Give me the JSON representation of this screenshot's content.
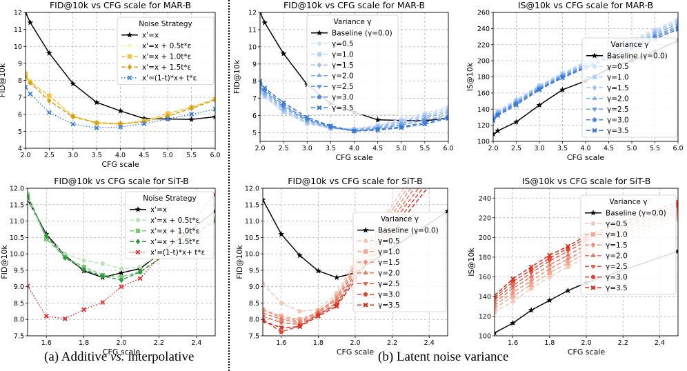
{
  "captions": {
    "a_prefix": "(a) Additive ",
    "a_vs": "vs.",
    "a_suffix": " interpolative",
    "b": "(b) Latent noise variance"
  },
  "chart_data": [
    {
      "id": "fid_mar_strategy",
      "type": "line",
      "title": "FID@10k vs CFG scale for MAR-B",
      "xlabel": "CFG scale",
      "ylabel": "FID@10k",
      "xlim": [
        2.0,
        6.0
      ],
      "ylim": [
        4,
        12
      ],
      "xticks": [
        "2.0",
        "2.5",
        "3.0",
        "3.5",
        "4.0",
        "4.5",
        "5.0",
        "5.5",
        "6.0"
      ],
      "yticks": [
        "4",
        "5",
        "6",
        "7",
        "8",
        "9",
        "10",
        "11",
        "12"
      ],
      "grid": true,
      "legend_title": "Noise Strategy",
      "legend_position": "top-right",
      "x": [
        2.0,
        2.1,
        2.5,
        3.0,
        3.5,
        4.0,
        4.5,
        5.0,
        5.5,
        6.0
      ],
      "series": [
        {
          "name": "x'=x",
          "color": "#000000",
          "marker": "star",
          "dash": "solid",
          "values": [
            12.0,
            11.4,
            9.6,
            7.8,
            6.7,
            6.2,
            5.75,
            5.72,
            5.7,
            5.85
          ]
        },
        {
          "name": "x'=x + 0.5t*ε",
          "color": "#fff1c2",
          "marker": "circle",
          "dash": "dashed",
          "values": [
            8.3,
            8.0,
            7.0,
            5.9,
            5.45,
            5.4,
            5.6,
            5.95,
            6.4,
            6.85
          ]
        },
        {
          "name": "x'=x + 1.0t*ε",
          "color": "#f5c242",
          "marker": "square",
          "dash": "dashed",
          "values": [
            8.4,
            7.9,
            7.1,
            5.9,
            5.5,
            5.42,
            5.62,
            6.05,
            6.42,
            6.9
          ]
        },
        {
          "name": "x'=x + 1.5t*ε",
          "color": "#d4a017",
          "marker": "diamond",
          "dash": "dashed",
          "values": [
            8.2,
            7.85,
            6.8,
            5.85,
            5.5,
            5.45,
            5.55,
            5.9,
            6.35,
            6.85
          ]
        },
        {
          "name": "x'=(1-t)*x+ t*ε",
          "color": "#3f7fd8",
          "marker": "x",
          "dash": "dotted",
          "values": [
            7.6,
            7.2,
            6.1,
            5.42,
            5.2,
            5.25,
            5.45,
            5.72,
            6.0,
            6.3
          ]
        }
      ]
    },
    {
      "id": "fid_mar_variance",
      "type": "line",
      "title": "FID@10k vs CFG scale for MAR-B",
      "xlabel": "CFG scale",
      "ylabel": "FID@10k",
      "xlim": [
        2.0,
        6.0
      ],
      "ylim": [
        4.5,
        12
      ],
      "xticks": [
        "2.0",
        "2.5",
        "3.0",
        "3.5",
        "4.0",
        "4.5",
        "5.0",
        "5.5",
        "6.0"
      ],
      "yticks": [
        "5",
        "6",
        "7",
        "8",
        "9",
        "10",
        "11",
        "12"
      ],
      "grid": true,
      "legend_title": "Variance γ",
      "legend_position": "top-right",
      "x": [
        2.0,
        2.1,
        2.5,
        3.0,
        3.5,
        4.0,
        4.5,
        5.0,
        5.5,
        6.0
      ],
      "series": [
        {
          "name": "Baseline (γ=0.0)",
          "color": "#000000",
          "marker": "star",
          "dash": "solid",
          "values": [
            12.0,
            11.4,
            9.6,
            7.8,
            6.7,
            6.2,
            5.75,
            5.72,
            5.7,
            5.85
          ]
        },
        {
          "name": "γ=0.5",
          "color": "#cfe0fb",
          "marker": "circle",
          "dash": "dashed",
          "values": [
            7.3,
            7.1,
            6.2,
            5.6,
            5.3,
            5.25,
            5.45,
            5.8,
            6.15,
            6.5
          ]
        },
        {
          "name": "γ=1.0",
          "color": "#b6d0f8",
          "marker": "square",
          "dash": "dashed",
          "values": [
            7.4,
            7.1,
            6.2,
            5.55,
            5.25,
            5.2,
            5.4,
            5.7,
            6.05,
            6.4
          ]
        },
        {
          "name": "γ=1.5",
          "color": "#9bbef4",
          "marker": "diamond",
          "dash": "dashed",
          "values": [
            7.5,
            7.2,
            6.3,
            5.6,
            5.25,
            5.2,
            5.35,
            5.65,
            5.95,
            6.3
          ]
        },
        {
          "name": "γ=2.0",
          "color": "#80acee",
          "marker": "triangle-up",
          "dash": "dashed",
          "values": [
            7.6,
            7.3,
            6.4,
            5.7,
            5.3,
            5.15,
            5.3,
            5.55,
            5.85,
            6.2
          ]
        },
        {
          "name": "γ=2.5",
          "color": "#6698e6",
          "marker": "triangle-down",
          "dash": "dashed",
          "values": [
            7.7,
            7.4,
            6.5,
            5.75,
            5.3,
            5.1,
            5.25,
            5.45,
            5.75,
            6.0
          ]
        },
        {
          "name": "γ=3.0",
          "color": "#4c86df",
          "marker": "pentagon",
          "dash": "dashed",
          "values": [
            7.9,
            7.5,
            6.6,
            5.8,
            5.35,
            5.1,
            5.2,
            5.35,
            5.6,
            5.9
          ]
        },
        {
          "name": "γ=3.5",
          "color": "#3575d6",
          "marker": "x",
          "dash": "dashed",
          "values": [
            8.0,
            7.6,
            6.75,
            5.9,
            5.4,
            5.1,
            5.15,
            5.3,
            5.5,
            5.85
          ]
        }
      ]
    },
    {
      "id": "is_mar_variance",
      "type": "line",
      "title": "IS@10k vs CFG scale for MAR-B",
      "xlabel": "CFG scale",
      "ylabel": "IS@10k",
      "xlim": [
        2.0,
        6.0
      ],
      "ylim": [
        100,
        260
      ],
      "xticks": [
        "2.0",
        "2.5",
        "3.0",
        "3.5",
        "4.0",
        "4.5",
        "5.0",
        "5.5",
        "6.0"
      ],
      "yticks": [
        "100",
        "120",
        "140",
        "160",
        "180",
        "200",
        "220",
        "240",
        "260"
      ],
      "grid": true,
      "legend_title": "Variance γ",
      "legend_position": "center-right",
      "x": [
        2.0,
        2.1,
        2.5,
        3.0,
        3.5,
        4.0,
        4.5,
        5.0,
        5.5,
        6.0
      ],
      "series": [
        {
          "name": "Baseline (γ=0.0)",
          "color": "#000000",
          "marker": "star",
          "dash": "solid",
          "values": [
            109,
            113,
            124,
            145,
            164,
            175,
            190,
            200,
            212,
            225
          ]
        },
        {
          "name": "γ=0.5",
          "color": "#cfe0fb",
          "marker": "circle",
          "dash": "dashed",
          "values": [
            132,
            138,
            152,
            170,
            185,
            199,
            212,
            226,
            239,
            252
          ]
        },
        {
          "name": "γ=1.0",
          "color": "#b6d0f8",
          "marker": "square",
          "dash": "dashed",
          "values": [
            131,
            137,
            151,
            169,
            184,
            198,
            211,
            224,
            237,
            250
          ]
        },
        {
          "name": "γ=1.5",
          "color": "#9bbef4",
          "marker": "diamond",
          "dash": "dashed",
          "values": [
            130,
            136,
            150,
            168,
            183,
            196,
            209,
            222,
            235,
            248
          ]
        },
        {
          "name": "γ=2.0",
          "color": "#80acee",
          "marker": "triangle-up",
          "dash": "dashed",
          "values": [
            129,
            135,
            149,
            167,
            182,
            195,
            208,
            220,
            233,
            246
          ]
        },
        {
          "name": "γ=2.5",
          "color": "#6698e6",
          "marker": "triangle-down",
          "dash": "dashed",
          "values": [
            128,
            134,
            148,
            166,
            181,
            193,
            206,
            218,
            231,
            243
          ]
        },
        {
          "name": "γ=3.0",
          "color": "#4c86df",
          "marker": "pentagon",
          "dash": "dashed",
          "values": [
            127,
            133,
            147,
            165,
            180,
            192,
            204,
            216,
            229,
            241
          ]
        },
        {
          "name": "γ=3.5",
          "color": "#3575d6",
          "marker": "x",
          "dash": "dashed",
          "values": [
            126,
            132,
            145,
            164,
            179,
            191,
            203,
            215,
            227,
            239
          ]
        }
      ]
    },
    {
      "id": "fid_sit_strategy",
      "type": "line",
      "title": "FID@10k vs CFG scale for SiT-B",
      "xlabel": "CFG scale",
      "ylabel": "FID@10k",
      "xlim": [
        1.5,
        2.5
      ],
      "ylim": [
        7.5,
        12.0
      ],
      "xticks": [
        "1.6",
        "1.8",
        "2.0",
        "2.2",
        "2.4"
      ],
      "yticks": [
        "7.5",
        "8.0",
        "8.5",
        "9.0",
        "9.5",
        "10.0",
        "10.5",
        "11.0",
        "11.5",
        "12.0"
      ],
      "grid": true,
      "legend_title": "Noise Strategy",
      "legend_position": "top-right",
      "x": [
        1.5,
        1.6,
        1.7,
        1.8,
        1.9,
        2.0,
        2.1,
        2.5
      ],
      "series": [
        {
          "name": "x'=x",
          "color": "#000000",
          "marker": "star",
          "dash": "solid",
          "values": [
            11.65,
            10.6,
            9.95,
            9.48,
            9.28,
            9.42,
            9.55,
            11.3
          ]
        },
        {
          "name": "x'=x + 0.5t*ε",
          "color": "#b7e4b7",
          "marker": "circle",
          "dash": "dashed",
          "values": [
            11.7,
            10.5,
            10.0,
            9.8,
            9.7,
            9.55,
            9.6,
            11.1
          ]
        },
        {
          "name": "x'=x + 1.0t*ε",
          "color": "#77c977",
          "marker": "square",
          "dash": "dashed",
          "values": [
            11.8,
            10.45,
            9.9,
            9.6,
            9.35,
            9.3,
            9.45,
            11.05
          ]
        },
        {
          "name": "x'=x + 1.5t*ε",
          "color": "#2e9a3e",
          "marker": "diamond",
          "dash": "dashed",
          "values": [
            11.75,
            10.55,
            9.88,
            9.52,
            9.32,
            9.2,
            9.45,
            11.0
          ]
        },
        {
          "name": "x'=(1-t)*x+ t*ε",
          "color": "#e03030",
          "marker": "x",
          "dash": "dotted",
          "values": [
            9.02,
            8.1,
            8.02,
            8.3,
            8.52,
            9.0,
            9.25,
            11.8
          ]
        }
      ]
    },
    {
      "id": "fid_sit_variance",
      "type": "line",
      "title": "FID@10k vs CFG scale for SiT-B",
      "xlabel": "CFG scale",
      "ylabel": "FID@10k",
      "xlim": [
        1.5,
        2.5
      ],
      "ylim": [
        7.5,
        12.0
      ],
      "xticks": [
        "1.6",
        "1.8",
        "2.0",
        "2.2",
        "2.4"
      ],
      "yticks": [
        "7.5",
        "8.0",
        "8.5",
        "9.0",
        "9.5",
        "10.0",
        "10.5",
        "11.0",
        "11.5",
        "12.0"
      ],
      "grid": true,
      "legend_title": "Variance γ",
      "legend_position": "center-right",
      "x": [
        1.5,
        1.6,
        1.7,
        1.8,
        1.9,
        2.0,
        2.5
      ],
      "series": [
        {
          "name": "Baseline (γ=0.0)",
          "color": "#000000",
          "marker": "star",
          "dash": "solid",
          "values": [
            11.65,
            10.6,
            9.95,
            9.48,
            9.28,
            9.42,
            11.3
          ]
        },
        {
          "name": "γ=0.5",
          "color": "#f8c4b4",
          "marker": "circle",
          "dash": "dashed",
          "values": [
            9.1,
            8.5,
            8.25,
            8.3,
            8.8,
            9.8,
            14.0
          ]
        },
        {
          "name": "γ=1.0",
          "color": "#f4a994",
          "marker": "square",
          "dash": "dashed",
          "values": [
            8.3,
            8.1,
            8.0,
            8.2,
            8.7,
            9.7,
            13.8
          ]
        },
        {
          "name": "γ=1.5",
          "color": "#f08f78",
          "marker": "diamond",
          "dash": "dashed",
          "values": [
            8.3,
            8.05,
            7.95,
            8.25,
            8.65,
            9.6,
            13.6
          ]
        },
        {
          "name": "γ=2.0",
          "color": "#eb765e",
          "marker": "triangle-up",
          "dash": "dashed",
          "values": [
            8.2,
            8.0,
            7.9,
            8.2,
            8.6,
            9.5,
            13.4
          ]
        },
        {
          "name": "γ=2.5",
          "color": "#e65d46",
          "marker": "triangle-down",
          "dash": "dashed",
          "values": [
            8.1,
            7.9,
            7.85,
            8.15,
            8.5,
            9.4,
            13.2
          ]
        },
        {
          "name": "γ=3.0",
          "color": "#e04530",
          "marker": "pentagon",
          "dash": "dashed",
          "values": [
            8.0,
            7.62,
            7.8,
            8.15,
            8.45,
            9.3,
            13.0
          ]
        },
        {
          "name": "γ=3.5",
          "color": "#d92e1e",
          "marker": "x",
          "dash": "dashed",
          "values": [
            7.95,
            7.75,
            7.78,
            8.1,
            8.4,
            9.2,
            12.8
          ]
        }
      ]
    },
    {
      "id": "is_sit_variance",
      "type": "line",
      "title": "IS@10k vs CFG scale for SiT-B",
      "xlabel": "CFG scale",
      "ylabel": "IS@10k",
      "xlim": [
        1.5,
        2.5
      ],
      "ylim": [
        100,
        250
      ],
      "xticks": [
        "1.6",
        "1.8",
        "2.0",
        "2.2",
        "2.4"
      ],
      "yticks": [
        "100",
        "120",
        "140",
        "160",
        "180",
        "200",
        "220",
        "240"
      ],
      "grid": true,
      "legend_title": "Variance γ",
      "legend_position": "center-right",
      "x": [
        1.5,
        1.6,
        1.7,
        1.8,
        1.9,
        2.0,
        2.5
      ],
      "series": [
        {
          "name": "Baseline (γ=0.0)",
          "color": "#000000",
          "marker": "star",
          "dash": "solid",
          "values": [
            103,
            113,
            126,
            136,
            146,
            154,
            186
          ]
        },
        {
          "name": "γ=0.5",
          "color": "#f8c4b4",
          "marker": "circle",
          "dash": "dashed",
          "values": [
            124,
            135,
            148,
            160,
            170,
            180,
            218
          ]
        },
        {
          "name": "γ=1.0",
          "color": "#f4a994",
          "marker": "square",
          "dash": "dashed",
          "values": [
            128,
            140,
            152,
            164,
            174,
            184,
            222
          ]
        },
        {
          "name": "γ=1.5",
          "color": "#f08f78",
          "marker": "diamond",
          "dash": "dashed",
          "values": [
            131,
            144,
            156,
            168,
            178,
            188,
            225
          ]
        },
        {
          "name": "γ=2.0",
          "color": "#eb765e",
          "marker": "triangle-up",
          "dash": "dashed",
          "values": [
            134,
            148,
            160,
            172,
            182,
            192,
            228
          ]
        },
        {
          "name": "γ=2.5",
          "color": "#e65d46",
          "marker": "triangle-down",
          "dash": "dashed",
          "values": [
            137,
            151,
            164,
            176,
            186,
            196,
            230
          ]
        },
        {
          "name": "γ=3.0",
          "color": "#e04530",
          "marker": "pentagon",
          "dash": "dashed",
          "values": [
            139,
            155,
            167,
            179,
            189,
            199,
            233
          ]
        },
        {
          "name": "γ=3.5",
          "color": "#d92e1e",
          "marker": "x",
          "dash": "dashed",
          "values": [
            141,
            158,
            170,
            182,
            191,
            202,
            236
          ]
        }
      ]
    }
  ]
}
